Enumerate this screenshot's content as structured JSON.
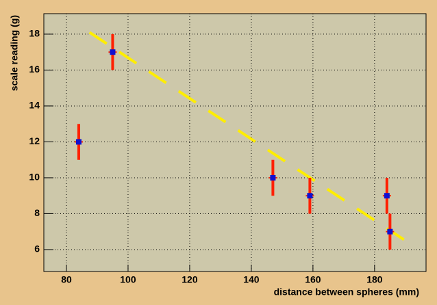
{
  "chart_data": {
    "type": "scatter",
    "x_label": "distance between spheres (mm)",
    "y_label": "scale reading (g)",
    "xlim": [
      72.67,
      196.7
    ],
    "ylim": [
      4.78,
      19.14
    ],
    "xticks": [
      80,
      100,
      120,
      140,
      160,
      180
    ],
    "yticks": [
      6,
      8,
      10,
      12,
      14,
      16,
      18
    ],
    "grid": true,
    "background": "#e8c48c",
    "plot_background": "#cdc8aa",
    "series": [
      {
        "type": "errorbar",
        "color": "#1010d0",
        "error_color": "#ff2000",
        "x": [
          84,
          95,
          147,
          159,
          184,
          185
        ],
        "y": [
          12,
          17,
          10,
          9,
          9,
          7
        ],
        "yerr": [
          1,
          1,
          1,
          1,
          1,
          1
        ]
      },
      {
        "type": "line",
        "color": "#ffee00",
        "dashed": true,
        "x": [
          87.5,
          190
        ],
        "y": [
          18.1,
          6.5
        ]
      }
    ]
  }
}
